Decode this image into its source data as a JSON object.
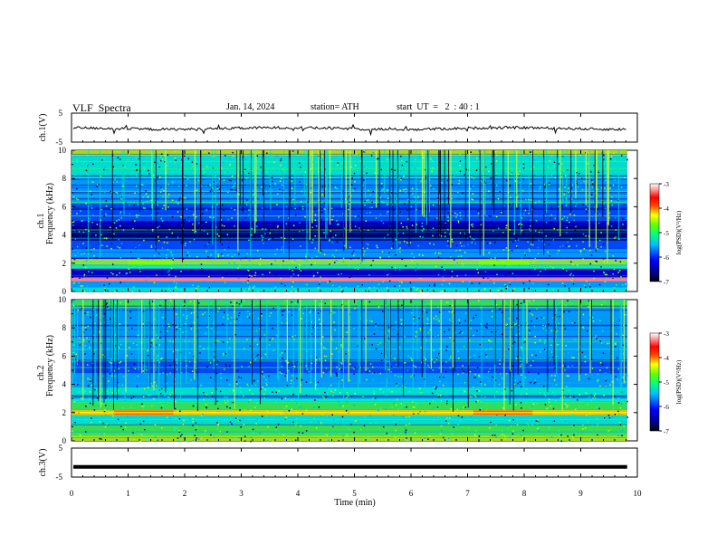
{
  "header": {
    "title": "VLF  Spectra",
    "date": "Jan. 14, 2024",
    "station": "station= ATH",
    "start": "start  UT  =   2  : 40 : 1"
  },
  "chart_data": [
    {
      "type": "line",
      "name": "ch1-waveform",
      "ylabel": "ch.1(V)",
      "ylim": [
        -5,
        5
      ],
      "yticks": [
        "5",
        "-5"
      ],
      "xlim": [
        0,
        10
      ],
      "description_level": 0
    },
    {
      "type": "heatmap",
      "name": "ch1-spectrogram",
      "ylabel_top": "ch.1",
      "ylabel": "Frequency  (kHz)",
      "ylim": [
        0,
        10
      ],
      "yticks": [
        "0",
        "2",
        "4",
        "6",
        "8",
        "10"
      ],
      "xlim": [
        0,
        10
      ],
      "colorbar": {
        "label": "log(PSD)(V²/Hz)",
        "range": [
          -7,
          -3
        ],
        "ticks": [
          "-3",
          "-4",
          "-5",
          "-6",
          "-7"
        ]
      }
    },
    {
      "type": "heatmap",
      "name": "ch2-spectrogram",
      "ylabel_top": "ch.2",
      "ylabel": "Frequency  (kHz)",
      "ylim": [
        0,
        10
      ],
      "yticks": [
        "0",
        "2",
        "4",
        "6",
        "8",
        "10"
      ],
      "xlim": [
        0,
        10
      ],
      "colorbar": {
        "label": "log(PSD)(V²/Hz)",
        "range": [
          -7,
          -3
        ],
        "ticks": [
          "-3",
          "-4",
          "-5",
          "-6",
          "-7"
        ]
      }
    },
    {
      "type": "line",
      "name": "ch3-waveform",
      "ylabel": "ch.3(V)",
      "ylim": [
        -5,
        5
      ],
      "yticks": [
        "5",
        "-5"
      ],
      "xlim": [
        0,
        10
      ],
      "level": -1.5
    }
  ],
  "xaxis": {
    "label": "Time  (min)",
    "ticks": [
      "0",
      "1",
      "2",
      "3",
      "4",
      "5",
      "6",
      "7",
      "8",
      "9",
      "10"
    ],
    "data_end": 9.82
  },
  "colors": {
    "colormap": [
      "#000060",
      "#0000c0",
      "#0050ff",
      "#00b0ff",
      "#00ffd0",
      "#40ff40",
      "#c0ff00",
      "#ffe000",
      "#ff6000",
      "#e00000",
      "#ff9090",
      "#ffe0e0"
    ]
  }
}
